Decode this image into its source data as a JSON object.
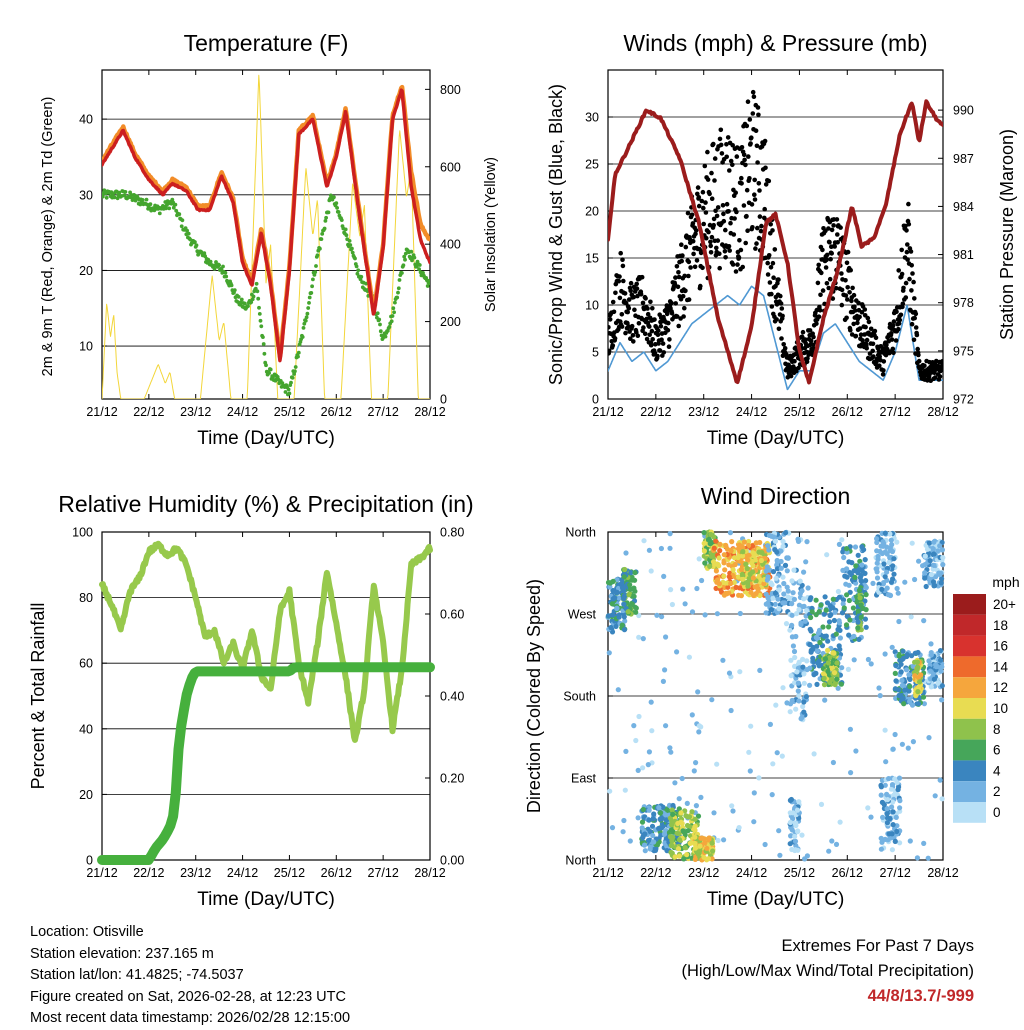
{
  "colors": {
    "temp_2m": "#cc1f1f",
    "temp_9m": "#f28c28",
    "dewpoint": "#44a52e",
    "solar": "#f3d63a",
    "sonic_wind": "#4f98d3",
    "gust": "#000000",
    "pressure": "#9b1c1c",
    "rh": "#97c94c",
    "precip": "#46b03d"
  },
  "chart_data": [
    {
      "type": "line",
      "id": "temperature",
      "title": "Temperature (F)",
      "xlabel": "Time (Day/UTC)",
      "ylabel_left": "2m & 9m T (Red, Orange) & 2m Td (Green)",
      "ylabel_right": "Solar Insolation (Yellow)",
      "x_tick_labels": [
        "21/12",
        "22/12",
        "23/12",
        "24/12",
        "25/12",
        "26/12",
        "27/12",
        "28/12"
      ],
      "xlim": [
        0,
        7
      ],
      "ylim_left": [
        3,
        46.5
      ],
      "y_ticks_left": [
        "10",
        "20",
        "30",
        "40"
      ],
      "ylim_right": [
        0,
        850
      ],
      "y_ticks_right": [
        "0",
        "200",
        "400",
        "600",
        "800"
      ],
      "series": [
        {
          "name": "2m T",
          "axis": "left",
          "x": [
            0,
            0.3,
            0.45,
            0.7,
            1.0,
            1.3,
            1.5,
            1.8,
            2.05,
            2.3,
            2.55,
            2.8,
            3.0,
            3.2,
            3.4,
            3.6,
            3.8,
            4.0,
            4.2,
            4.5,
            4.8,
            5.0,
            5.2,
            5.5,
            5.8,
            6.0,
            6.2,
            6.4,
            6.6,
            6.8,
            7.0
          ],
          "values": [
            34,
            37,
            38.5,
            35,
            32,
            30,
            31.5,
            30.5,
            28,
            28,
            32.5,
            29,
            21,
            18,
            25,
            18,
            8,
            20,
            38,
            40,
            31,
            35,
            41,
            27,
            14,
            23,
            40,
            44,
            31,
            24,
            21
          ]
        },
        {
          "name": "9m T",
          "axis": "left",
          "x": [
            0,
            0.3,
            0.45,
            0.7,
            1.0,
            1.3,
            1.5,
            1.8,
            2.05,
            2.3,
            2.55,
            2.8,
            3.0,
            3.2,
            3.4,
            3.6,
            3.8,
            4.0,
            4.2,
            4.5,
            4.8,
            5.0,
            5.2,
            5.5,
            5.8,
            6.0,
            6.2,
            6.4,
            6.6,
            6.8,
            7.0
          ],
          "values": [
            34.5,
            37.5,
            39,
            35.5,
            32.5,
            30.5,
            32,
            31,
            28.5,
            28.5,
            33,
            29.5,
            21.5,
            18.5,
            25.5,
            18.5,
            8.5,
            20.5,
            38.5,
            40.5,
            31.5,
            35.5,
            41.5,
            27.5,
            14.5,
            23.5,
            40.5,
            44.5,
            33,
            26,
            24
          ]
        },
        {
          "name": "2m Td",
          "axis": "left",
          "x": [
            0,
            0.5,
            0.9,
            1.2,
            1.5,
            1.8,
            2.0,
            2.3,
            2.6,
            2.9,
            3.1,
            3.3,
            3.5,
            3.8,
            4.0,
            4.3,
            4.6,
            4.9,
            5.2,
            5.5,
            5.8,
            6.0,
            6.2,
            6.5,
            6.8,
            7.0
          ],
          "values": [
            30,
            30,
            29,
            28,
            29,
            25,
            23,
            21,
            20,
            16,
            15,
            18,
            7,
            5,
            4,
            12,
            22,
            30,
            25,
            19,
            16,
            11,
            14,
            23,
            20,
            18
          ]
        },
        {
          "name": "Solar",
          "axis": "right",
          "x": [
            0,
            0.1,
            0.18,
            0.25,
            0.32,
            0.4,
            0.9,
            1.2,
            1.35,
            1.45,
            1.55,
            2.1,
            2.35,
            2.5,
            2.6,
            2.75,
            3.1,
            3.35,
            3.5,
            3.6,
            3.75,
            4.1,
            4.35,
            4.5,
            4.6,
            4.75,
            5.1,
            5.35,
            5.5,
            5.6,
            5.75,
            6.1,
            6.35,
            6.5,
            6.6,
            6.75,
            7.0
          ],
          "values": [
            0,
            250,
            160,
            220,
            70,
            0,
            0,
            90,
            40,
            70,
            0,
            0,
            320,
            150,
            200,
            0,
            0,
            850,
            300,
            400,
            0,
            0,
            600,
            420,
            520,
            0,
            0,
            560,
            420,
            500,
            0,
            0,
            700,
            520,
            600,
            0,
            0
          ]
        }
      ]
    },
    {
      "type": "line",
      "id": "winds",
      "title": "Winds (mph) & Pressure (mb)",
      "xlabel": "Time (Day/UTC)",
      "ylabel_left": "Sonic/Prop Wind & Gust (Blue, Black)",
      "ylabel_right": "Station Pressure (Maroon)",
      "x_tick_labels": [
        "21/12",
        "22/12",
        "23/12",
        "24/12",
        "25/12",
        "26/12",
        "27/12",
        "28/12"
      ],
      "xlim": [
        0,
        7
      ],
      "ylim_left": [
        0,
        35
      ],
      "y_ticks_left": [
        "0",
        "5",
        "10",
        "15",
        "20",
        "25",
        "30"
      ],
      "ylim_right": [
        972,
        992.5
      ],
      "y_ticks_right": [
        "972",
        "975",
        "978",
        "981",
        "984",
        "987",
        "990"
      ],
      "series": [
        {
          "name": "Sonic/Prop Wind",
          "axis": "left",
          "x": [
            0,
            0.25,
            0.5,
            0.75,
            1.0,
            1.25,
            1.5,
            1.75,
            2.0,
            2.25,
            2.5,
            2.75,
            3.0,
            3.25,
            3.5,
            3.75,
            4.0,
            4.25,
            4.5,
            4.75,
            5.0,
            5.25,
            5.5,
            5.75,
            6.0,
            6.25,
            6.5,
            6.75,
            7.0
          ],
          "values": [
            3,
            6,
            4,
            5,
            3,
            4,
            6,
            8,
            9,
            10,
            11,
            10,
            12,
            11,
            6,
            1,
            3,
            3,
            7,
            8,
            6,
            4,
            3,
            2,
            5,
            10,
            2,
            2,
            2
          ]
        },
        {
          "name": "Gust",
          "axis": "left",
          "x": [
            0,
            0.25,
            0.5,
            0.75,
            1.0,
            1.25,
            1.5,
            1.75,
            2.0,
            2.25,
            2.5,
            2.75,
            3.0,
            3.25,
            3.5,
            3.75,
            4.0,
            4.25,
            4.5,
            4.75,
            5.0,
            5.25,
            5.5,
            5.75,
            6.0,
            6.25,
            6.5,
            6.75,
            7.0
          ],
          "values": [
            6,
            12,
            9,
            10,
            6,
            8,
            12,
            16,
            19,
            21,
            22,
            20,
            25,
            22,
            12,
            3,
            5,
            6,
            14,
            16,
            12,
            8,
            6,
            4,
            8,
            17,
            3,
            3,
            3
          ]
        },
        {
          "name": "Station Pressure",
          "axis": "right",
          "x": [
            0,
            0.15,
            0.4,
            0.8,
            1.1,
            1.5,
            1.9,
            2.3,
            2.7,
            3.0,
            3.3,
            3.5,
            3.75,
            4.0,
            4.2,
            4.5,
            4.8,
            5.1,
            5.3,
            5.55,
            5.8,
            6.1,
            6.35,
            6.5,
            6.65,
            6.85,
            7.0
          ],
          "values": [
            982,
            986,
            987.5,
            990,
            989.5,
            987,
            983,
            977,
            973,
            976.5,
            983,
            983.5,
            980.5,
            975,
            973,
            977,
            980,
            984,
            981.5,
            982,
            984,
            988.5,
            990.5,
            988,
            990.5,
            989.5,
            989
          ]
        }
      ]
    },
    {
      "type": "line",
      "id": "humidity",
      "title": "Relative Humidity (%) & Precipitation (in)",
      "xlabel": "Time (Day/UTC)",
      "ylabel_left": "Percent & Total Rainfall",
      "x_tick_labels": [
        "21/12",
        "22/12",
        "23/12",
        "24/12",
        "25/12",
        "26/12",
        "27/12",
        "28/12"
      ],
      "xlim": [
        0,
        7
      ],
      "ylim_left": [
        0,
        100
      ],
      "y_ticks_left": [
        "0",
        "20",
        "40",
        "60",
        "80",
        "100"
      ],
      "ylim_right": [
        0,
        0.8
      ],
      "y_ticks_right": [
        "0.00",
        "0.20",
        "0.40",
        "0.60",
        "0.80"
      ],
      "series": [
        {
          "name": "Relative Humidity",
          "axis": "left",
          "x": [
            0,
            0.2,
            0.4,
            0.6,
            0.8,
            1.0,
            1.2,
            1.4,
            1.6,
            1.8,
            2.0,
            2.2,
            2.4,
            2.6,
            2.8,
            3.0,
            3.2,
            3.4,
            3.6,
            3.8,
            4.0,
            4.2,
            4.4,
            4.6,
            4.8,
            5.0,
            5.2,
            5.4,
            5.6,
            5.8,
            6.0,
            6.2,
            6.4,
            6.6,
            6.8,
            7.0
          ],
          "values": [
            84,
            78,
            70,
            82,
            86,
            94,
            96,
            93,
            95,
            90,
            80,
            68,
            70,
            60,
            66,
            58,
            70,
            56,
            52,
            76,
            82,
            60,
            48,
            66,
            88,
            72,
            56,
            36,
            52,
            84,
            66,
            40,
            58,
            90,
            92,
            95
          ]
        },
        {
          "name": "Total Rainfall",
          "axis": "right",
          "x": [
            0,
            0.5,
            1.0,
            1.15,
            1.3,
            1.45,
            1.55,
            1.65,
            1.8,
            1.9,
            2.0,
            2.5,
            3.0,
            3.5,
            4.0,
            4.1,
            4.5,
            5.0,
            5.5,
            6.0,
            6.5,
            7.0
          ],
          "values": [
            0,
            0,
            0,
            0.03,
            0.05,
            0.08,
            0.12,
            0.3,
            0.4,
            0.44,
            0.46,
            0.46,
            0.46,
            0.46,
            0.46,
            0.47,
            0.47,
            0.47,
            0.47,
            0.47,
            0.47,
            0.47
          ]
        }
      ]
    },
    {
      "type": "scatter",
      "id": "wind_direction",
      "title": "Wind Direction",
      "xlabel": "Time (Day/UTC)",
      "ylabel": "Direction (Colored By Speed)",
      "x_tick_labels": [
        "21/12",
        "22/12",
        "23/12",
        "24/12",
        "25/12",
        "26/12",
        "27/12",
        "28/12"
      ],
      "xlim": [
        0,
        7
      ],
      "ylim": [
        0,
        360
      ],
      "direction_labels": [
        "North",
        "East",
        "South",
        "West",
        "North"
      ],
      "legend_title": "mph",
      "legend_labels": [
        "20+",
        "18",
        "16",
        "14",
        "12",
        "10",
        "8",
        "6",
        "4",
        "2",
        "0"
      ],
      "legend_colors": [
        "#9b1c1c",
        "#c0282a",
        "#d8322e",
        "#ee6a2c",
        "#f5a63d",
        "#e8dc52",
        "#8fc24c",
        "#46a65a",
        "#3a85bf",
        "#74b2e2",
        "#b8e0f6"
      ],
      "clusters": [
        {
          "x0": 0,
          "x1": 0.35,
          "d0": 250,
          "d1": 310,
          "speed": 4
        },
        {
          "x0": 0.3,
          "x1": 0.6,
          "d0": 270,
          "d1": 320,
          "speed": 6
        },
        {
          "x0": 0.7,
          "x1": 1.5,
          "d0": 10,
          "d1": 60,
          "speed": 4
        },
        {
          "x0": 1.3,
          "x1": 1.9,
          "d0": 0,
          "d1": 55,
          "speed": 8
        },
        {
          "x0": 1.8,
          "x1": 2.2,
          "d0": 0,
          "d1": 25,
          "speed": 10
        },
        {
          "x0": 2.0,
          "x1": 2.3,
          "d0": 320,
          "d1": 360,
          "speed": 8
        },
        {
          "x0": 2.2,
          "x1": 3.4,
          "d0": 290,
          "d1": 350,
          "speed": 12
        },
        {
          "x0": 2.8,
          "x1": 3.3,
          "d0": 300,
          "d1": 340,
          "speed": 10
        },
        {
          "x0": 3.3,
          "x1": 3.8,
          "d0": 270,
          "d1": 360,
          "speed": 2
        },
        {
          "x0": 3.8,
          "x1": 4.2,
          "d0": 150,
          "d1": 320,
          "speed": 2
        },
        {
          "x0": 3.8,
          "x1": 4.0,
          "d0": 10,
          "d1": 70,
          "speed": 2
        },
        {
          "x0": 4.2,
          "x1": 4.9,
          "d0": 190,
          "d1": 290,
          "speed": 4
        },
        {
          "x0": 4.5,
          "x1": 4.8,
          "d0": 190,
          "d1": 230,
          "speed": 8
        },
        {
          "x0": 4.9,
          "x1": 5.4,
          "d0": 240,
          "d1": 345,
          "speed": 4
        },
        {
          "x0": 5.2,
          "x1": 5.3,
          "d0": 250,
          "d1": 300,
          "speed": 6
        },
        {
          "x0": 5.6,
          "x1": 6.0,
          "d0": 290,
          "d1": 360,
          "speed": 2
        },
        {
          "x0": 5.7,
          "x1": 6.1,
          "d0": 10,
          "d1": 90,
          "speed": 2
        },
        {
          "x0": 6.0,
          "x1": 6.6,
          "d0": 170,
          "d1": 230,
          "speed": 4
        },
        {
          "x0": 6.4,
          "x1": 6.55,
          "d0": 180,
          "d1": 220,
          "speed": 10
        },
        {
          "x0": 6.6,
          "x1": 7.0,
          "d0": 300,
          "d1": 350,
          "speed": 2
        },
        {
          "x0": 6.7,
          "x1": 7.0,
          "d0": 190,
          "d1": 230,
          "speed": 2
        }
      ]
    }
  ],
  "footer": {
    "location": "Location: Otisville",
    "elevation": "Station elevation: 237.165 m",
    "latlon": "Station lat/lon: 41.4825; -74.5037",
    "created": "Figure created on Sat, 2026-02-28, at 12:23 UTC",
    "recent": "Most recent data timestamp: 2026/02/28 12:15:00",
    "extremes_title": "Extremes For Past 7 Days",
    "extremes_subtitle": "(High/Low/Max Wind/Total Precipitation)",
    "extremes_values": "44/8/13.7/-999"
  }
}
